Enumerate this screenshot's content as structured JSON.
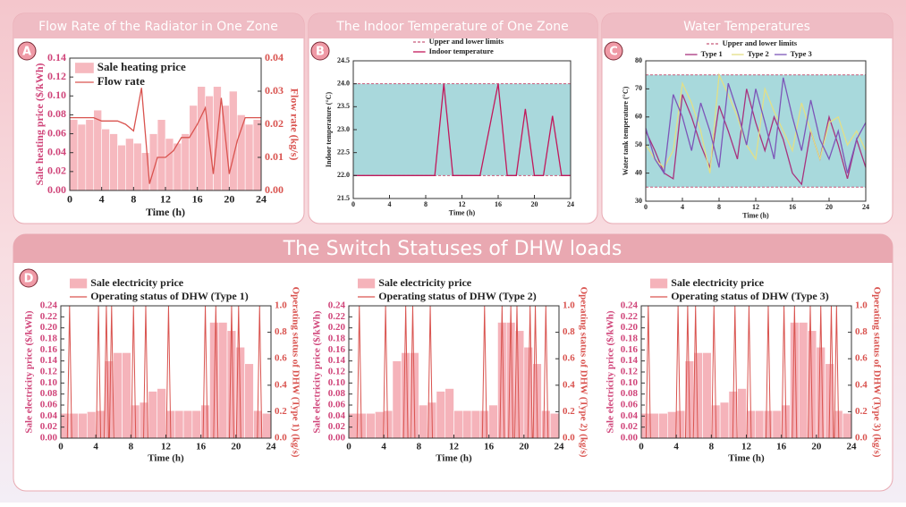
{
  "chart_data": [
    {
      "type": "combo",
      "title": "Flow Rate of the Radiator in One Zone",
      "label": "A",
      "xlabel": "Time (h)",
      "ylabel": "Sale heating price ($/kWh)",
      "y2label": "Flow rate (kg/s)",
      "xlim": [
        0,
        24
      ],
      "xticks": [
        0,
        4,
        8,
        12,
        16,
        20,
        24
      ],
      "ylim": [
        0,
        0.14
      ],
      "yticks": [
        {
          "value": 0,
          "label": "0.00"
        },
        0.02,
        0.04,
        0.06,
        0.08,
        {
          "value": 0.1,
          "label": "0.10"
        },
        0.12,
        0.14
      ],
      "y2lim": [
        0,
        0.04
      ],
      "y2ticks": [
        {
          "value": 0,
          "label": "0.00"
        },
        0.01,
        0.02,
        0.03,
        0.04
      ],
      "series": [
        {
          "name": "Sale heating price",
          "type": "bar",
          "color": "#f6b9bf",
          "x": [
            0,
            1,
            2,
            3,
            4,
            5,
            6,
            7,
            8,
            9,
            10,
            11,
            12,
            13,
            14,
            15,
            16,
            17,
            18,
            19,
            20,
            21,
            22,
            23
          ],
          "values": [
            0.075,
            0.07,
            0.075,
            0.085,
            0.065,
            0.06,
            0.048,
            0.055,
            0.05,
            0.04,
            0.06,
            0.075,
            0.055,
            0.05,
            0.06,
            0.09,
            0.11,
            0.1,
            0.11,
            0.09,
            0.105,
            0.08,
            0.07,
            0.075
          ]
        },
        {
          "name": "Flow rate",
          "type": "line",
          "axis": "y2",
          "color": "#d9534f",
          "x": [
            0,
            1,
            2,
            3,
            4,
            5,
            6,
            7,
            8,
            9,
            10,
            11,
            12,
            13,
            14,
            15,
            16,
            17,
            18,
            19,
            20,
            21,
            22,
            23,
            24
          ],
          "values": [
            0.022,
            0.022,
            0.022,
            0.022,
            0.021,
            0.021,
            0.021,
            0.02,
            0.018,
            0.031,
            0.002,
            0.01,
            0.01,
            0.012,
            0.016,
            0.016,
            0.02,
            0.025,
            0.005,
            0.028,
            0.005,
            0.015,
            0.022,
            0.022,
            0.022
          ]
        }
      ]
    },
    {
      "type": "line",
      "title": "The Indoor Temperature of One Zone",
      "label": "B",
      "xlabel": "Time (h)",
      "ylabel": "Indoor temperature (°C)",
      "xlim": [
        0,
        24
      ],
      "xticks": [
        0,
        4,
        8,
        12,
        16,
        20,
        24
      ],
      "ylim": [
        21.5,
        24.5
      ],
      "yticks": [
        21.5,
        {
          "value": 22,
          "label": "22.0"
        },
        22.5,
        {
          "value": 23,
          "label": "23.0"
        },
        23.5,
        {
          "value": 24,
          "label": "24.0"
        },
        24.5
      ],
      "band": {
        "name": "Upper and lower limits",
        "values": [
          22,
          24
        ],
        "color": "#a9d8dc",
        "line_color": "#c85a7a"
      },
      "x": [
        0,
        1,
        2,
        3,
        4,
        5,
        6,
        7,
        8,
        9,
        10,
        11,
        12,
        13,
        14,
        15,
        16,
        17,
        18,
        19,
        20,
        21,
        22,
        23,
        24
      ],
      "series": [
        {
          "name": "Indoor temperature",
          "type": "line",
          "color": "#c2185b",
          "values": [
            22,
            22,
            22,
            22,
            22,
            22,
            22,
            22,
            22,
            22,
            24,
            22,
            22,
            22,
            22,
            23,
            24,
            22,
            22,
            23.45,
            22,
            22,
            23.3,
            22,
            22
          ]
        }
      ]
    },
    {
      "type": "line",
      "title": "Water Temperatures",
      "label": "C",
      "xlabel": "Time (h)",
      "ylabel": "Water tank temperature (°C)",
      "xlim": [
        0,
        24
      ],
      "xticks": [
        0,
        4,
        8,
        12,
        16,
        20,
        24
      ],
      "ylim": [
        30,
        80
      ],
      "yticks": [
        30,
        40,
        50,
        60,
        70,
        80
      ],
      "band": {
        "name": "Upper and lower limits",
        "values": [
          35,
          75
        ],
        "color": "#a8d9dc",
        "line_color": "#c85a7a"
      },
      "x": [
        0,
        1,
        2,
        3,
        4,
        5,
        6,
        7,
        8,
        9,
        10,
        11,
        12,
        13,
        14,
        15,
        16,
        17,
        18,
        19,
        20,
        21,
        22,
        23,
        24
      ],
      "series": [
        {
          "name": "Type 1",
          "type": "line",
          "color": "#a8327e",
          "values": [
            55,
            48,
            40,
            38,
            68,
            60,
            50,
            42,
            64,
            55,
            45,
            70,
            58,
            48,
            60,
            52,
            40,
            36,
            55,
            45,
            60,
            50,
            38,
            52,
            42
          ]
        },
        {
          "name": "Type 2",
          "type": "line",
          "color": "#e3df86",
          "values": [
            50,
            45,
            42,
            48,
            72,
            65,
            55,
            40,
            75,
            68,
            60,
            50,
            45,
            70,
            62,
            55,
            48,
            65,
            55,
            45,
            58,
            60,
            50,
            55,
            48
          ]
        },
        {
          "name": "Type 3",
          "type": "line",
          "color": "#7d56b8",
          "values": [
            56,
            45,
            40,
            68,
            60,
            48,
            65,
            55,
            42,
            72,
            62,
            50,
            70,
            58,
            45,
            74,
            60,
            48,
            66,
            52,
            45,
            55,
            40,
            52,
            58
          ]
        }
      ]
    },
    {
      "type": "combo",
      "title": "The Switch Statuses of DHW loads",
      "label": "D",
      "xlabel": "Time (h)",
      "ylabel": "Sale electricity price ($/kWh)",
      "y2label": "Operating status of DHW (Type 1) (kg/s)",
      "xlim": [
        0,
        24
      ],
      "xticks": [
        0,
        4,
        8,
        12,
        16,
        20,
        24
      ],
      "ylim": [
        0,
        0.24
      ],
      "yticks": [
        {
          "value": 0,
          "label": "0.00"
        },
        0.02,
        0.04,
        0.06,
        0.08,
        {
          "value": 0.1,
          "label": "0.10"
        },
        0.12,
        0.14,
        0.16,
        0.18,
        {
          "value": 0.2,
          "label": "0.20"
        },
        0.22,
        0.24
      ],
      "y2lim": [
        0,
        1
      ],
      "y2ticks": [
        {
          "value": 0,
          "label": "0.0"
        },
        0.2,
        0.4,
        0.6,
        0.8,
        {
          "value": 1,
          "label": "1.0"
        }
      ],
      "series": [
        {
          "name": "Sale electricity price",
          "type": "bar",
          "color": "#f5b3ba",
          "x": [
            0,
            1,
            2,
            3,
            4,
            5,
            6,
            7,
            8,
            9,
            10,
            11,
            12,
            13,
            14,
            15,
            16,
            17,
            18,
            19,
            20,
            21,
            22,
            23
          ],
          "values": [
            0.045,
            0.045,
            0.045,
            0.048,
            0.05,
            0.14,
            0.155,
            0.155,
            0.06,
            0.065,
            0.085,
            0.09,
            0.05,
            0.05,
            0.05,
            0.05,
            0.06,
            0.21,
            0.21,
            0.195,
            0.165,
            0.135,
            0.05,
            0.045
          ]
        },
        {
          "name": "Operating status of DHW (Type 1)",
          "type": "line",
          "axis": "y2",
          "color": "#d9534f",
          "x": [
            0,
            0.75,
            1,
            1.25,
            4.05,
            4.3,
            4.55,
            4.95,
            5.2,
            5.45,
            5.55,
            5.8,
            6.05,
            8.05,
            8.3,
            8.55,
            9.45,
            9.7,
            9.95,
            12.05,
            12.3,
            12.55,
            16.25,
            16.5,
            16.75,
            17.45,
            17.7,
            17.95,
            19.25,
            19.5,
            19.75,
            20.05,
            20.3,
            20.55,
            22.45,
            22.7,
            22.95,
            24
          ],
          "values": [
            0,
            0,
            1,
            0,
            0,
            1,
            0,
            0,
            1,
            0,
            0,
            1,
            0,
            0,
            1,
            0,
            0,
            1,
            0,
            0,
            1,
            0,
            0,
            1,
            0,
            0,
            1,
            0,
            0,
            1,
            0,
            0,
            1,
            0,
            0,
            1,
            0,
            0
          ]
        }
      ]
    },
    {
      "type": "combo",
      "xlabel": "Time (h)",
      "ylabel": "Sale electricity price ($/kWh)",
      "y2label": "Operating status of DHW (Type 2) (kg/s)",
      "xlim": [
        0,
        24
      ],
      "xticks": [
        0,
        4,
        8,
        12,
        16,
        20,
        24
      ],
      "ylim": [
        0,
        0.24
      ],
      "yticks": [
        {
          "value": 0,
          "label": "0.00"
        },
        0.02,
        0.04,
        0.06,
        0.08,
        {
          "value": 0.1,
          "label": "0.10"
        },
        0.12,
        0.14,
        0.16,
        0.18,
        {
          "value": 0.2,
          "label": "0.20"
        },
        0.22,
        0.24
      ],
      "y2lim": [
        0,
        1
      ],
      "y2ticks": [
        {
          "value": 0,
          "label": "0.0"
        },
        0.2,
        0.4,
        0.6,
        0.8,
        {
          "value": 1,
          "label": "1.0"
        }
      ],
      "series": [
        {
          "name": "Sale electricity price",
          "type": "bar",
          "color": "#f5b3ba",
          "x": [
            0,
            1,
            2,
            3,
            4,
            5,
            6,
            7,
            8,
            9,
            10,
            11,
            12,
            13,
            14,
            15,
            16,
            17,
            18,
            19,
            20,
            21,
            22,
            23
          ],
          "values": [
            0.045,
            0.045,
            0.045,
            0.048,
            0.05,
            0.14,
            0.155,
            0.155,
            0.06,
            0.065,
            0.085,
            0.09,
            0.05,
            0.05,
            0.05,
            0.05,
            0.06,
            0.21,
            0.21,
            0.195,
            0.165,
            0.135,
            0.05,
            0.045
          ]
        },
        {
          "name": "Operating status of DHW (Type 2)",
          "type": "line",
          "axis": "y2",
          "color": "#d9534f",
          "x": [
            0,
            0.95,
            1.2,
            1.45,
            3.95,
            4.2,
            4.45,
            6.25,
            6.5,
            6.75,
            7.05,
            7.3,
            7.55,
            9.05,
            9.3,
            9.55,
            15.25,
            15.5,
            15.75,
            17.25,
            17.5,
            17.75,
            18.25,
            18.5,
            18.75,
            18.95,
            19.2,
            19.45,
            20.45,
            20.7,
            20.95,
            21.05,
            21.3,
            21.55,
            22.25,
            22.5,
            22.75,
            24
          ],
          "values": [
            0,
            0,
            1,
            0,
            0,
            1,
            0,
            0,
            1,
            0,
            0,
            1,
            0,
            0,
            1,
            0,
            0,
            1,
            0,
            0,
            1,
            0,
            0,
            1,
            0,
            0,
            1,
            0,
            0,
            1,
            0,
            0,
            1,
            0,
            0,
            1,
            0,
            0
          ]
        }
      ]
    },
    {
      "type": "combo",
      "xlabel": "Time (h)",
      "ylabel": "Sale electricity price ($/kWh)",
      "y2label": "Operating status of DHW (Type 3) (kg/s)",
      "xlim": [
        0,
        24
      ],
      "xticks": [
        0,
        4,
        8,
        12,
        16,
        20,
        24
      ],
      "ylim": [
        0,
        0.24
      ],
      "yticks": [
        {
          "value": 0,
          "label": "0.00"
        },
        0.02,
        0.04,
        0.06,
        0.08,
        {
          "value": 0.1,
          "label": "0.10"
        },
        0.12,
        0.14,
        0.16,
        0.18,
        {
          "value": 0.2,
          "label": "0.20"
        },
        0.22,
        0.24
      ],
      "y2lim": [
        0,
        1
      ],
      "y2ticks": [
        {
          "value": 0,
          "label": "0.0"
        },
        0.2,
        0.4,
        0.6,
        0.8,
        {
          "value": 1,
          "label": "1.0"
        }
      ],
      "series": [
        {
          "name": "Sale electricity price",
          "type": "bar",
          "color": "#f5b3ba",
          "x": [
            0,
            1,
            2,
            3,
            4,
            5,
            6,
            7,
            8,
            9,
            10,
            11,
            12,
            13,
            14,
            15,
            16,
            17,
            18,
            19,
            20,
            21,
            22,
            23
          ],
          "values": [
            0.045,
            0.045,
            0.045,
            0.048,
            0.05,
            0.14,
            0.155,
            0.155,
            0.06,
            0.065,
            0.085,
            0.09,
            0.05,
            0.05,
            0.05,
            0.05,
            0.06,
            0.21,
            0.21,
            0.195,
            0.165,
            0.135,
            0.05,
            0.045
          ]
        },
        {
          "name": "Operating status of DHW (Type 3)",
          "type": "line",
          "axis": "y2",
          "color": "#d9534f",
          "x": [
            0,
            0.55,
            0.8,
            1.05,
            3.95,
            4.2,
            4.45,
            5.05,
            5.3,
            5.55,
            5.95,
            6.2,
            6.45,
            8.05,
            8.3,
            8.55,
            10.45,
            10.7,
            10.95,
            12.05,
            12.3,
            12.55,
            14.25,
            14.5,
            14.75,
            16.05,
            16.3,
            16.55,
            17.25,
            17.5,
            17.75,
            19.05,
            19.3,
            19.55,
            20.25,
            20.5,
            20.75,
            21.45,
            21.7,
            21.95,
            22.05,
            22.3,
            22.55,
            24
          ],
          "values": [
            0,
            0,
            1,
            0,
            0,
            1,
            0,
            0,
            1,
            0,
            0,
            1,
            0,
            0,
            1,
            0,
            0,
            1,
            0,
            0,
            1,
            0,
            0,
            1,
            0,
            0,
            1,
            0,
            0,
            1,
            0,
            0,
            1,
            0,
            0,
            1,
            0,
            0,
            1,
            0,
            0,
            1,
            0,
            0
          ]
        }
      ]
    }
  ]
}
